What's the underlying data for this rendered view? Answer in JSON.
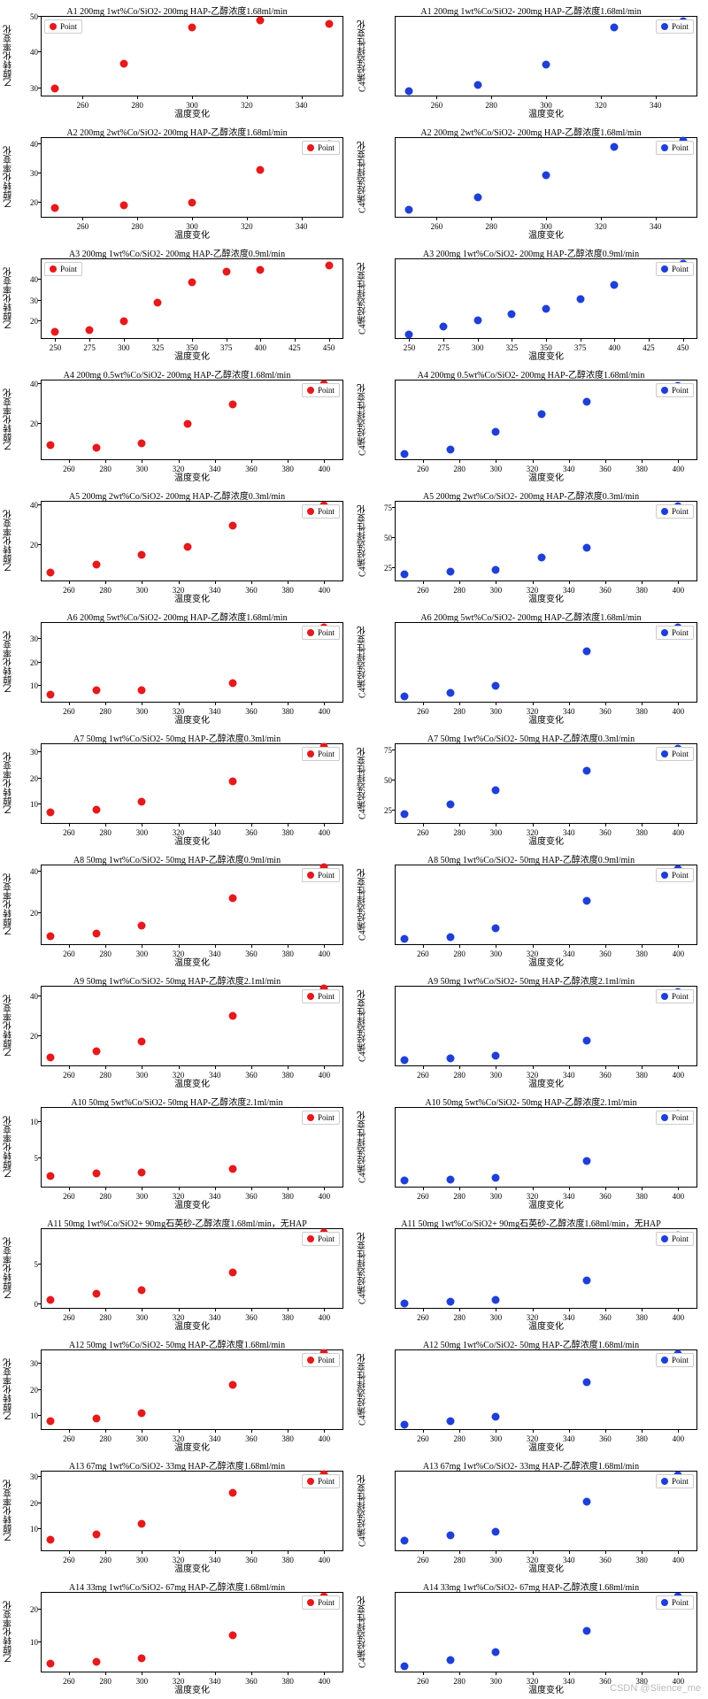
{
  "global": {
    "xlabel": "温度变化",
    "ylabel_left": "乙醇转化率变化",
    "ylabel_right": "C4烯烃选择性变化",
    "legend_label": "Point",
    "red": "#e41a1c",
    "blue": "#1f3fd6",
    "tick_fontsize": 9,
    "title_fontsize": 10,
    "marker_size": 9,
    "watermark": "CSDN @Slience_me"
  },
  "rows": [
    {
      "title": "A1  200mg 1wt%Co/SiO2- 200mg HAP-乙醇浓度1.68ml/min",
      "xticks": [
        260,
        280,
        300,
        320,
        340
      ],
      "xlim": [
        245,
        355
      ],
      "left": {
        "ylim": [
          28,
          50
        ],
        "yticks": [
          30,
          40,
          50
        ],
        "legend": "top-left",
        "pts": [
          [
            250,
            30
          ],
          [
            275,
            37
          ],
          [
            300,
            47
          ],
          [
            325,
            49
          ],
          [
            350,
            48
          ]
        ]
      },
      "right": {
        "ylim": [
          3,
          39
        ],
        "yticks": [],
        "legend": "top-right",
        "pts": [
          [
            250,
            5
          ],
          [
            275,
            8
          ],
          [
            300,
            17
          ],
          [
            325,
            34
          ],
          [
            350,
            37
          ]
        ]
      }
    },
    {
      "title": "A2  200mg 2wt%Co/SiO2- 200mg HAP-乙醇浓度1.68ml/min",
      "xticks": [
        260,
        280,
        300,
        320,
        340
      ],
      "xlim": [
        245,
        355
      ],
      "left": {
        "ylim": [
          15,
          42
        ],
        "yticks": [
          20,
          30,
          40
        ],
        "legend": "top-right",
        "pts": [
          [
            250,
            18
          ],
          [
            275,
            19
          ],
          [
            300,
            20
          ],
          [
            325,
            31
          ],
          [
            350,
            40
          ]
        ]
      },
      "right": {
        "ylim": [
          5,
          58
        ],
        "yticks": [],
        "legend": "top-right",
        "pts": [
          [
            250,
            10
          ],
          [
            275,
            18
          ],
          [
            300,
            33
          ],
          [
            325,
            52
          ],
          [
            350,
            56
          ]
        ]
      }
    },
    {
      "title": "A3  200mg 1wt%Co/SiO2- 200mg HAP-乙醇浓度0.9ml/min",
      "xticks": [
        250,
        275,
        300,
        325,
        350,
        375,
        400,
        425,
        450
      ],
      "xlim": [
        240,
        460
      ],
      "left": {
        "ylim": [
          12,
          50
        ],
        "yticks": [
          20,
          30,
          40
        ],
        "legend": "top-left",
        "pts": [
          [
            250,
            15
          ],
          [
            275,
            16
          ],
          [
            300,
            20
          ],
          [
            325,
            29
          ],
          [
            350,
            39
          ],
          [
            375,
            44
          ],
          [
            400,
            45
          ],
          [
            450,
            47
          ]
        ]
      },
      "right": {
        "ylim": [
          15,
          82
        ],
        "yticks": [],
        "legend": "top-right",
        "pts": [
          [
            250,
            18
          ],
          [
            275,
            25
          ],
          [
            300,
            30
          ],
          [
            325,
            35
          ],
          [
            350,
            40
          ],
          [
            375,
            48
          ],
          [
            400,
            60
          ],
          [
            450,
            78
          ]
        ]
      }
    },
    {
      "title": "A4  200mg 0.5wt%Co/SiO2- 200mg HAP-乙醇浓度1.68ml/min",
      "xticks": [
        260,
        280,
        300,
        320,
        340,
        360,
        380,
        400
      ],
      "xlim": [
        245,
        410
      ],
      "left": {
        "ylim": [
          2,
          42
        ],
        "yticks": [
          20,
          40
        ],
        "legend": "top-right",
        "pts": [
          [
            250,
            9
          ],
          [
            275,
            8
          ],
          [
            300,
            10
          ],
          [
            325,
            20
          ],
          [
            350,
            30
          ],
          [
            400,
            40
          ]
        ]
      },
      "right": {
        "ylim": [
          -2,
          62
        ],
        "yticks": [],
        "legend": "top-right",
        "pts": [
          [
            250,
            2
          ],
          [
            275,
            6
          ],
          [
            300,
            20
          ],
          [
            325,
            35
          ],
          [
            350,
            45
          ],
          [
            400,
            58
          ]
        ]
      }
    },
    {
      "title": "A5  200mg 2wt%Co/SiO2- 200mg HAP-乙醇浓度0.3ml/min",
      "xticks": [
        260,
        280,
        300,
        320,
        340,
        360,
        380,
        400
      ],
      "xlim": [
        245,
        410
      ],
      "left": {
        "ylim": [
          2,
          42
        ],
        "yticks": [
          20,
          40
        ],
        "legend": "top-right",
        "pts": [
          [
            250,
            6
          ],
          [
            275,
            10
          ],
          [
            300,
            15
          ],
          [
            325,
            19
          ],
          [
            350,
            30
          ],
          [
            400,
            40
          ]
        ]
      },
      "right": {
        "ylim": [
          15,
          80
        ],
        "yticks": [
          25,
          50,
          75
        ],
        "legend": "top-right",
        "pts": [
          [
            250,
            20
          ],
          [
            275,
            22
          ],
          [
            300,
            24
          ],
          [
            325,
            34
          ],
          [
            350,
            42
          ],
          [
            400,
            76
          ]
        ]
      }
    },
    {
      "title": "A6  200mg 5wt%Co/SiO2- 200mg HAP-乙醇浓度1.68ml/min",
      "xticks": [
        260,
        280,
        300,
        320,
        340,
        360,
        380,
        400
      ],
      "xlim": [
        245,
        410
      ],
      "left": {
        "ylim": [
          3,
          37
        ],
        "yticks": [
          10,
          20,
          30
        ],
        "legend": "top-right",
        "pts": [
          [
            250,
            6
          ],
          [
            275,
            8
          ],
          [
            300,
            8
          ],
          [
            350,
            11
          ],
          [
            400,
            35
          ]
        ]
      },
      "right": {
        "ylim": [
          10,
          80
        ],
        "yticks": [],
        "legend": "top-right",
        "pts": [
          [
            250,
            15
          ],
          [
            275,
            18
          ],
          [
            300,
            24
          ],
          [
            350,
            55
          ],
          [
            400,
            76
          ]
        ]
      }
    },
    {
      "title": "A7  50mg 1wt%Co/SiO2- 50mg HAP-乙醇浓度0.3ml/min",
      "xticks": [
        260,
        280,
        300,
        320,
        340,
        360,
        380,
        400
      ],
      "xlim": [
        245,
        410
      ],
      "left": {
        "ylim": [
          3,
          33
        ],
        "yticks": [
          10,
          20,
          30
        ],
        "legend": "top-right",
        "pts": [
          [
            250,
            7
          ],
          [
            275,
            8
          ],
          [
            300,
            11
          ],
          [
            350,
            19
          ],
          [
            400,
            32
          ]
        ]
      },
      "right": {
        "ylim": [
          15,
          80
        ],
        "yticks": [
          25,
          50,
          75
        ],
        "legend": "top-right",
        "pts": [
          [
            250,
            22
          ],
          [
            275,
            30
          ],
          [
            300,
            42
          ],
          [
            350,
            58
          ],
          [
            400,
            76
          ]
        ]
      }
    },
    {
      "title": "A8  50mg 1wt%Co/SiO2- 50mg HAP-乙醇浓度0.9ml/min",
      "xticks": [
        260,
        280,
        300,
        320,
        340,
        360,
        380,
        400
      ],
      "xlim": [
        245,
        410
      ],
      "left": {
        "ylim": [
          5,
          43
        ],
        "yticks": [
          20,
          40
        ],
        "legend": "top-right",
        "pts": [
          [
            250,
            9
          ],
          [
            275,
            10
          ],
          [
            300,
            14
          ],
          [
            350,
            27
          ],
          [
            400,
            42
          ]
        ]
      },
      "right": {
        "ylim": [
          8,
          52
        ],
        "yticks": [],
        "legend": "top-right",
        "pts": [
          [
            250,
            11
          ],
          [
            275,
            12
          ],
          [
            300,
            17
          ],
          [
            350,
            32
          ],
          [
            400,
            50
          ]
        ]
      }
    },
    {
      "title": "A9  50mg 1wt%Co/SiO2- 50mg HAP-乙醇浓度2.1ml/min",
      "xticks": [
        260,
        280,
        300,
        320,
        340,
        360,
        380,
        400
      ],
      "xlim": [
        245,
        410
      ],
      "left": {
        "ylim": [
          5,
          45
        ],
        "yticks": [
          20,
          40
        ],
        "legend": "top-right",
        "pts": [
          [
            250,
            9
          ],
          [
            275,
            12
          ],
          [
            300,
            17
          ],
          [
            350,
            30
          ],
          [
            400,
            44
          ]
        ]
      },
      "right": {
        "ylim": [
          3,
          45
        ],
        "yticks": [],
        "legend": "top-right",
        "pts": [
          [
            250,
            6
          ],
          [
            275,
            7
          ],
          [
            300,
            8
          ],
          [
            350,
            16
          ],
          [
            400,
            42
          ]
        ]
      }
    },
    {
      "title": "A10  50mg 5wt%Co/SiO2- 50mg HAP-乙醇浓度2.1ml/min",
      "xticks": [
        260,
        280,
        300,
        320,
        340,
        360,
        380,
        400
      ],
      "xlim": [
        245,
        410
      ],
      "left": {
        "ylim": [
          1,
          12
        ],
        "yticks": [
          5,
          10
        ],
        "legend": "top-right",
        "pts": [
          [
            250,
            2.5
          ],
          [
            275,
            2.8
          ],
          [
            300,
            3
          ],
          [
            350,
            3.5
          ],
          [
            400,
            11
          ]
        ]
      },
      "right": {
        "ylim": [
          -2,
          35
        ],
        "yticks": [],
        "legend": "top-right",
        "pts": [
          [
            250,
            1
          ],
          [
            275,
            1.5
          ],
          [
            300,
            2
          ],
          [
            350,
            10
          ],
          [
            400,
            32
          ]
        ]
      }
    },
    {
      "title": "A11  50mg 1wt%Co/SiO2+ 90mg石英砂-乙醇浓度1.68ml/min，无HAP",
      "xticks": [
        260,
        280,
        300,
        320,
        340,
        360,
        380,
        400
      ],
      "xlim": [
        245,
        410
      ],
      "left": {
        "ylim": [
          -0.5,
          9.5
        ],
        "yticks": [
          0,
          5
        ],
        "legend": "top-right",
        "pts": [
          [
            250,
            0.5
          ],
          [
            275,
            1.3
          ],
          [
            300,
            1.8
          ],
          [
            350,
            4
          ],
          [
            400,
            9
          ]
        ]
      },
      "right": {
        "ylim": [
          -1,
          25
        ],
        "yticks": [],
        "legend": "top-right",
        "pts": [
          [
            250,
            0.5
          ],
          [
            275,
            1
          ],
          [
            300,
            1.5
          ],
          [
            350,
            8
          ],
          [
            400,
            23
          ]
        ]
      }
    },
    {
      "title": "A12  50mg 1wt%Co/SiO2- 50mg HAP-乙醇浓度1.68ml/min",
      "xticks": [
        260,
        280,
        300,
        320,
        340,
        360,
        380,
        400
      ],
      "xlim": [
        245,
        410
      ],
      "left": {
        "ylim": [
          5,
          35
        ],
        "yticks": [
          10,
          20,
          30
        ],
        "legend": "top-right",
        "pts": [
          [
            250,
            8
          ],
          [
            275,
            9
          ],
          [
            300,
            11
          ],
          [
            350,
            22
          ],
          [
            400,
            34
          ]
        ]
      },
      "right": {
        "ylim": [
          0,
          50
        ],
        "yticks": [],
        "legend": "top-right",
        "pts": [
          [
            250,
            3
          ],
          [
            275,
            5
          ],
          [
            300,
            8
          ],
          [
            350,
            30
          ],
          [
            400,
            48
          ]
        ]
      }
    },
    {
      "title": "A13  67mg 1wt%Co/SiO2- 33mg HAP-乙醇浓度1.68ml/min",
      "xticks": [
        260,
        280,
        300,
        320,
        340,
        360,
        380,
        400
      ],
      "xlim": [
        245,
        410
      ],
      "left": {
        "ylim": [
          2,
          32
        ],
        "yticks": [
          10,
          20,
          30
        ],
        "legend": "top-right",
        "pts": [
          [
            250,
            6
          ],
          [
            275,
            8
          ],
          [
            300,
            12
          ],
          [
            350,
            24
          ],
          [
            400,
            31
          ]
        ]
      },
      "right": {
        "ylim": [
          -1,
          20
        ],
        "yticks": [],
        "legend": "top-right",
        "pts": [
          [
            250,
            1.5
          ],
          [
            275,
            3
          ],
          [
            300,
            4
          ],
          [
            350,
            12
          ],
          [
            400,
            19
          ]
        ]
      }
    },
    {
      "title": "A14  33mg 1wt%Co/SiO2- 67mg HAP-乙醇浓度1.68ml/min",
      "xticks": [
        260,
        280,
        300,
        320,
        340,
        360,
        380,
        400
      ],
      "xlim": [
        245,
        410
      ],
      "left": {
        "ylim": [
          1,
          25
        ],
        "yticks": [
          10,
          20
        ],
        "legend": "top-right",
        "pts": [
          [
            250,
            3.5
          ],
          [
            275,
            4
          ],
          [
            300,
            5
          ],
          [
            350,
            12
          ],
          [
            400,
            24
          ]
        ]
      },
      "right": {
        "ylim": [
          0,
          48
        ],
        "yticks": [],
        "legend": "top-right",
        "pts": [
          [
            250,
            3
          ],
          [
            275,
            7
          ],
          [
            300,
            12
          ],
          [
            350,
            25
          ],
          [
            400,
            46
          ]
        ]
      }
    }
  ]
}
